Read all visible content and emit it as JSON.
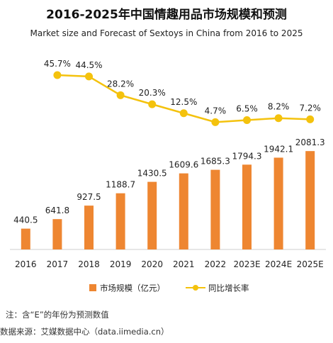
{
  "title": "2016-2025年中国情趣用品市场规模和预测",
  "subtitle": "Market size and Forecast of Sextoys in China from 2016 to 2025",
  "note": "注：含“E”的年份为预测数值",
  "source": "数据来源：艾媒数据中心（data.iimedia.cn）",
  "colors": {
    "bar": "#EE8631",
    "line": "#F4C20D",
    "axis": "#cfcfcf"
  },
  "chart_data": {
    "type": "bar",
    "categories": [
      "2016",
      "2017",
      "2018",
      "2019",
      "2020",
      "2021",
      "2022",
      "2023E",
      "2024E",
      "2025E"
    ],
    "series": [
      {
        "name": "市场规模（亿元）",
        "type": "bar",
        "values": [
          440.5,
          641.8,
          927.5,
          1188.7,
          1430.5,
          1609.6,
          1685.3,
          1794.3,
          1942.1,
          2081.3
        ],
        "labels": [
          "440.5",
          "641.8",
          "927.5",
          "1188.7",
          "1430.5",
          "1609.6",
          "1685.3",
          "1794.3",
          "1942.1",
          "2081.3"
        ]
      },
      {
        "name": "同比增长率",
        "type": "line",
        "values": [
          null,
          45.7,
          44.5,
          28.2,
          20.3,
          12.5,
          4.7,
          6.5,
          8.2,
          7.2
        ],
        "labels": [
          "",
          "45.7%",
          "44.5%",
          "28.2%",
          "20.3%",
          "12.5%",
          "4.7%",
          "6.5%",
          "8.2%",
          "7.2%"
        ]
      }
    ],
    "legend_position": "bottom",
    "grid": false
  }
}
